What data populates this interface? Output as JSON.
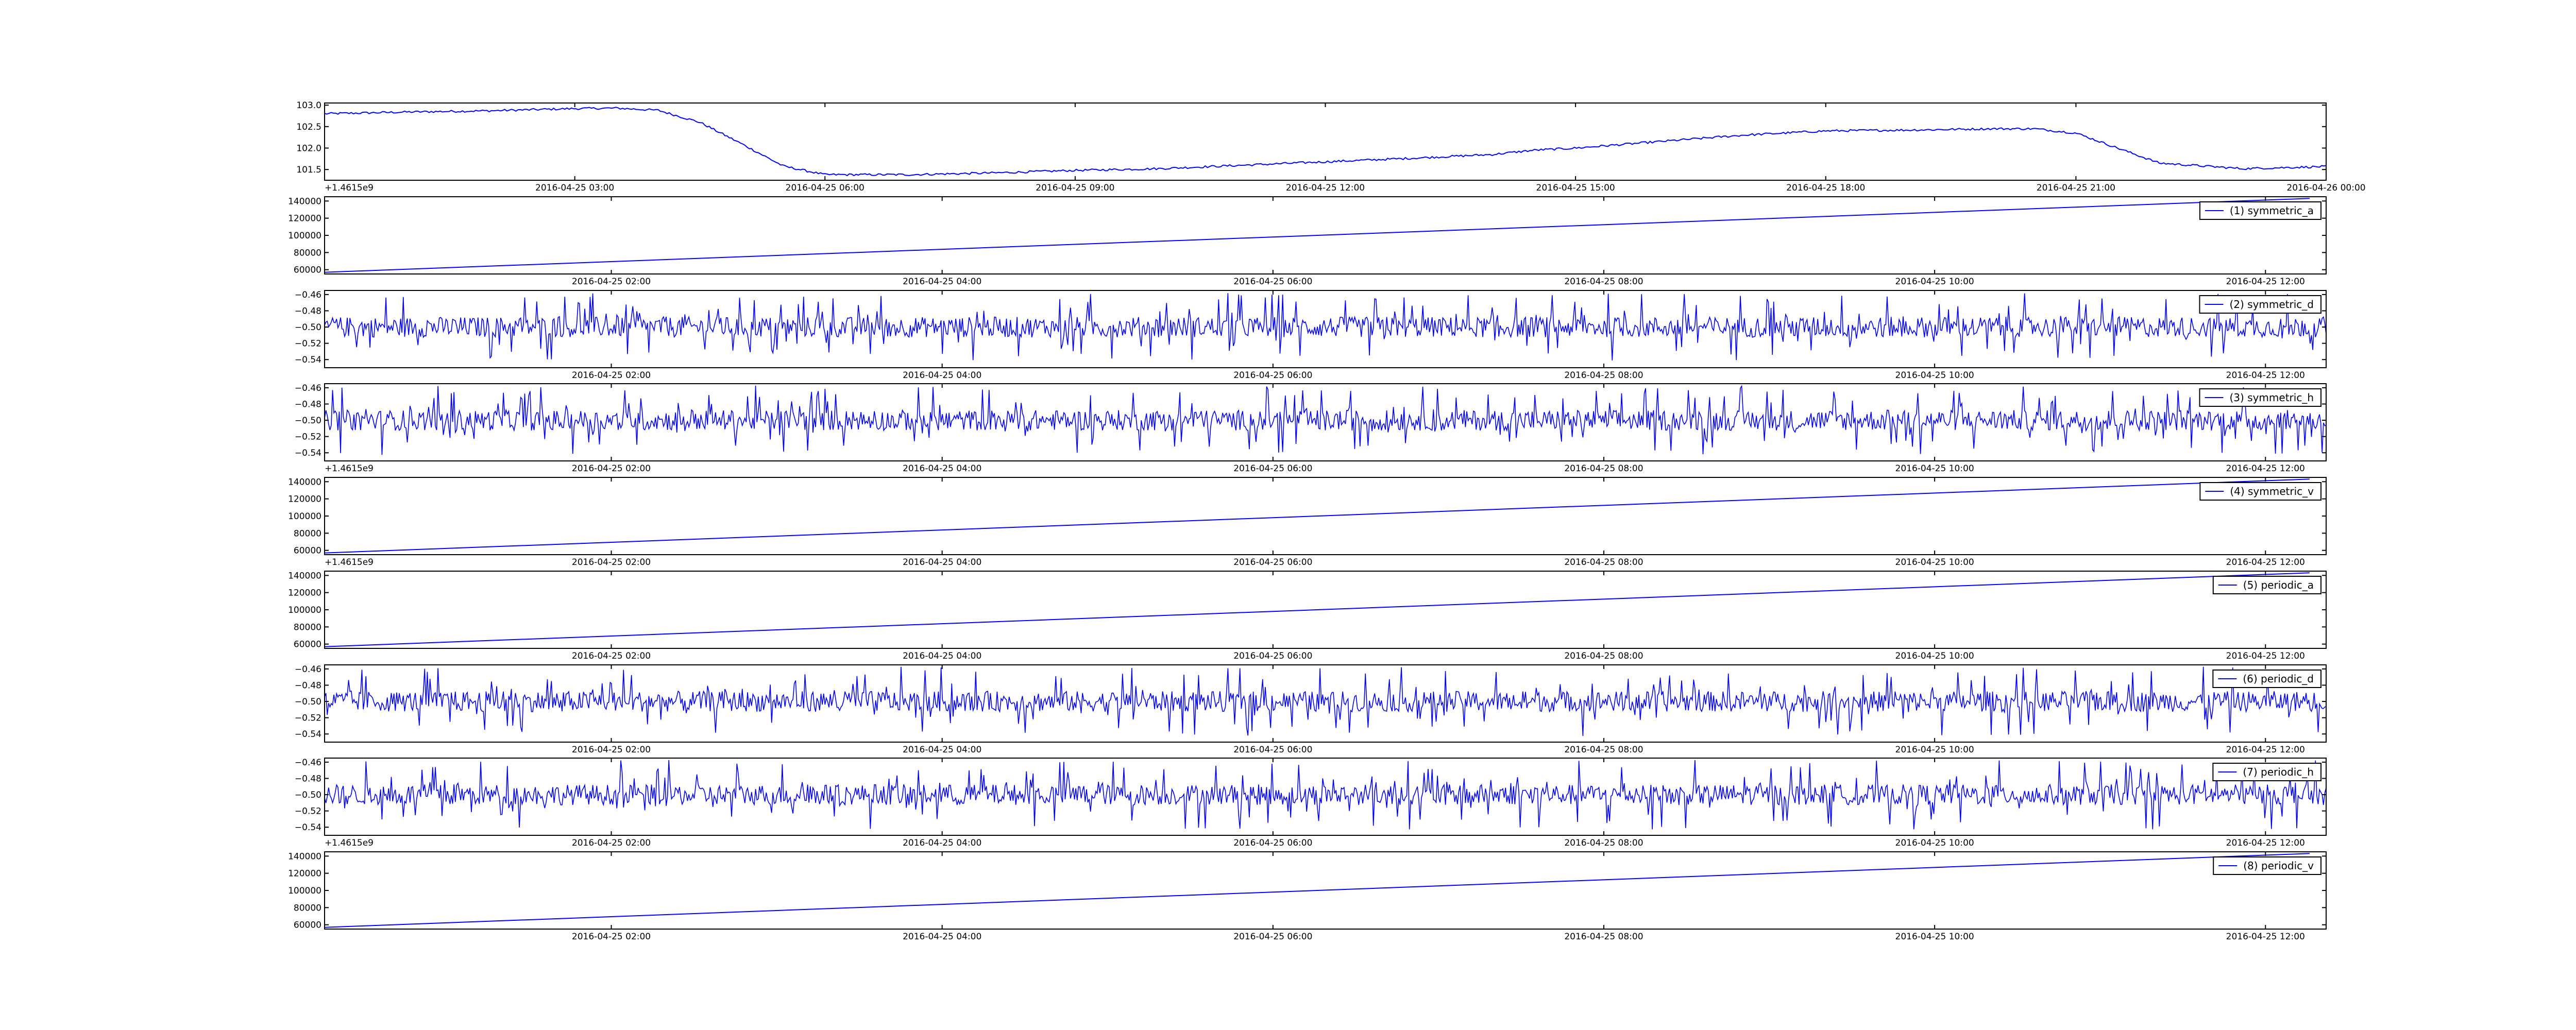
{
  "series_color": "#0000ff",
  "chart_data": [
    {
      "type": "line",
      "title": "",
      "xlabel": "",
      "ylabel": "",
      "x_range": [
        "2016-04-25 00:00",
        "2016-04-26 00:00"
      ],
      "xticks": [
        "2016-04-25 03:00",
        "2016-04-25 06:00",
        "2016-04-25 09:00",
        "2016-04-25 12:00",
        "2016-04-25 15:00",
        "2016-04-25 18:00",
        "2016-04-25 21:00",
        "2016-04-26 00:00"
      ],
      "ylim": [
        101.25,
        103.05
      ],
      "yticks": [
        "101.5",
        "102.0",
        "102.5",
        "103.0"
      ],
      "offset_text": "+1.4615e9",
      "legend": "",
      "grid": false,
      "shape": "plateau",
      "series": [
        {
          "x": [
            "2016-04-25 00:00",
            "2016-04-25 01:00",
            "2016-04-25 02:00",
            "2016-04-25 03:00",
            "2016-04-25 03:30",
            "2016-04-25 04:00",
            "2016-04-25 04:30",
            "2016-04-25 05:00",
            "2016-04-25 05:30",
            "2016-04-25 06:00",
            "2016-04-25 07:00",
            "2016-04-25 08:00",
            "2016-04-25 09:00",
            "2016-04-25 10:00",
            "2016-04-25 11:00",
            "2016-04-25 12:00",
            "2016-04-25 13:00",
            "2016-04-25 14:00",
            "2016-04-25 14:30",
            "2016-04-25 15:00",
            "2016-04-25 16:00",
            "2016-04-25 17:00",
            "2016-04-25 18:00",
            "2016-04-25 19:00",
            "2016-04-25 20:00",
            "2016-04-25 20:30",
            "2016-04-25 21:00",
            "2016-04-25 21:30",
            "2016-04-25 22:00",
            "2016-04-25 23:00",
            "2016-04-26 00:00"
          ],
          "y": [
            102.8,
            102.84,
            102.87,
            102.92,
            102.93,
            102.88,
            102.6,
            102.1,
            101.58,
            101.38,
            101.38,
            101.42,
            101.48,
            101.52,
            101.6,
            101.68,
            101.76,
            101.85,
            101.95,
            102.0,
            102.15,
            102.3,
            102.4,
            102.42,
            102.45,
            102.45,
            102.35,
            102.0,
            101.65,
            101.52,
            101.57
          ]
        }
      ]
    },
    {
      "type": "line",
      "title": "",
      "xlabel": "",
      "ylabel": "",
      "x_range": [
        "2016-04-25 00:16",
        "2016-04-25 12:22"
      ],
      "xticks": [
        "2016-04-25 02:00",
        "2016-04-25 04:00",
        "2016-04-25 06:00",
        "2016-04-25 08:00",
        "2016-04-25 10:00",
        "2016-04-25 12:00"
      ],
      "ylim": [
        55000,
        145000
      ],
      "yticks": [
        "140000",
        "120000",
        "100000",
        "80000",
        "60000"
      ],
      "offset_text": "",
      "legend": "(1) symmetric_a",
      "legend_placement": "upper right",
      "grid": false,
      "shape": "ramp",
      "series": [
        {
          "name": "(1) symmetric_a",
          "x": [
            "2016-04-25 00:16",
            "2016-04-25 12:16"
          ],
          "y": [
            57000,
            143000
          ]
        }
      ]
    },
    {
      "type": "line",
      "title": "",
      "xlabel": "",
      "ylabel": "",
      "x_range": [
        "2016-04-25 00:16",
        "2016-04-25 12:22"
      ],
      "xticks": [
        "2016-04-25 02:00",
        "2016-04-25 04:00",
        "2016-04-25 06:00",
        "2016-04-25 08:00",
        "2016-04-25 10:00",
        "2016-04-25 12:00"
      ],
      "ylim": [
        -0.55,
        -0.455
      ],
      "yticks": [
        "−0.46",
        "−0.48",
        "−0.50",
        "−0.52",
        "−0.54"
      ],
      "offset_text": "",
      "legend": "(2) symmetric_d",
      "legend_placement": "upper right",
      "grid": false,
      "shape": "noise",
      "series": [
        {
          "name": "(2) symmetric_d",
          "x": [
            "2016-04-25 00:16",
            "2016-04-25 12:22"
          ],
          "y": [
            -0.5,
            -0.5
          ],
          "y_range": [
            -0.545,
            -0.455
          ]
        }
      ]
    },
    {
      "type": "line",
      "title": "",
      "xlabel": "",
      "ylabel": "",
      "x_range": [
        "2016-04-25 00:16",
        "2016-04-25 12:22"
      ],
      "xticks": [
        "2016-04-25 02:00",
        "2016-04-25 04:00",
        "2016-04-25 06:00",
        "2016-04-25 08:00",
        "2016-04-25 10:00",
        "2016-04-25 12:00"
      ],
      "ylim": [
        -0.55,
        -0.455
      ],
      "yticks": [
        "−0.46",
        "−0.48",
        "−0.50",
        "−0.52",
        "−0.54"
      ],
      "offset_text": "+1.4615e9",
      "legend": "(3) symmetric_h",
      "legend_placement": "upper right",
      "grid": false,
      "shape": "noise",
      "series": [
        {
          "name": "(3) symmetric_h",
          "x": [
            "2016-04-25 00:16",
            "2016-04-25 12:22"
          ],
          "y": [
            -0.5,
            -0.5
          ],
          "y_range": [
            -0.545,
            -0.455
          ]
        }
      ]
    },
    {
      "type": "line",
      "title": "",
      "xlabel": "",
      "ylabel": "",
      "x_range": [
        "2016-04-25 00:16",
        "2016-04-25 12:22"
      ],
      "xticks": [
        "2016-04-25 02:00",
        "2016-04-25 04:00",
        "2016-04-25 06:00",
        "2016-04-25 08:00",
        "2016-04-25 10:00",
        "2016-04-25 12:00"
      ],
      "ylim": [
        55000,
        145000
      ],
      "yticks": [
        "140000",
        "120000",
        "100000",
        "80000",
        "60000"
      ],
      "offset_text": "+1.4615e9",
      "legend": "(4) symmetric_v",
      "legend_placement": "upper right",
      "grid": false,
      "shape": "ramp",
      "series": [
        {
          "name": "(4) symmetric_v",
          "x": [
            "2016-04-25 00:16",
            "2016-04-25 12:16"
          ],
          "y": [
            57000,
            143000
          ]
        }
      ]
    },
    {
      "type": "line",
      "title": "",
      "xlabel": "",
      "ylabel": "",
      "x_range": [
        "2016-04-25 00:16",
        "2016-04-25 12:22"
      ],
      "xticks": [
        "2016-04-25 02:00",
        "2016-04-25 04:00",
        "2016-04-25 06:00",
        "2016-04-25 08:00",
        "2016-04-25 10:00",
        "2016-04-25 12:00"
      ],
      "ylim": [
        55000,
        145000
      ],
      "yticks": [
        "140000",
        "120000",
        "100000",
        "80000",
        "60000"
      ],
      "offset_text": "",
      "legend": "(5) periodic_a",
      "legend_placement": "upper right",
      "grid": false,
      "shape": "ramp",
      "series": [
        {
          "name": "(5) periodic_a",
          "x": [
            "2016-04-25 00:16",
            "2016-04-25 12:16"
          ],
          "y": [
            57000,
            143000
          ]
        }
      ]
    },
    {
      "type": "line",
      "title": "",
      "xlabel": "",
      "ylabel": "",
      "x_range": [
        "2016-04-25 00:16",
        "2016-04-25 12:22"
      ],
      "xticks": [
        "2016-04-25 02:00",
        "2016-04-25 04:00",
        "2016-04-25 06:00",
        "2016-04-25 08:00",
        "2016-04-25 10:00",
        "2016-04-25 12:00"
      ],
      "ylim": [
        -0.55,
        -0.455
      ],
      "yticks": [
        "−0.46",
        "−0.48",
        "−0.50",
        "−0.52",
        "−0.54"
      ],
      "offset_text": "",
      "legend": "(6) periodic_d",
      "legend_placement": "upper right",
      "grid": false,
      "shape": "noise",
      "series": [
        {
          "name": "(6) periodic_d",
          "x": [
            "2016-04-25 00:16",
            "2016-04-25 12:22"
          ],
          "y": [
            -0.5,
            -0.5
          ],
          "y_range": [
            -0.545,
            -0.455
          ]
        }
      ]
    },
    {
      "type": "line",
      "title": "",
      "xlabel": "",
      "ylabel": "",
      "x_range": [
        "2016-04-25 00:16",
        "2016-04-25 12:22"
      ],
      "xticks": [
        "2016-04-25 02:00",
        "2016-04-25 04:00",
        "2016-04-25 06:00",
        "2016-04-25 08:00",
        "2016-04-25 10:00",
        "2016-04-25 12:00"
      ],
      "ylim": [
        -0.55,
        -0.455
      ],
      "yticks": [
        "−0.46",
        "−0.48",
        "−0.50",
        "−0.52",
        "−0.54"
      ],
      "offset_text": "+1.4615e9",
      "legend": "(7) periodic_h",
      "legend_placement": "upper right",
      "grid": false,
      "shape": "noise",
      "series": [
        {
          "name": "(7) periodic_h",
          "x": [
            "2016-04-25 00:16",
            "2016-04-25 12:22"
          ],
          "y": [
            -0.5,
            -0.5
          ],
          "y_range": [
            -0.545,
            -0.455
          ]
        }
      ]
    },
    {
      "type": "line",
      "title": "",
      "xlabel": "",
      "ylabel": "",
      "x_range": [
        "2016-04-25 00:16",
        "2016-04-25 12:22"
      ],
      "xticks": [
        "2016-04-25 02:00",
        "2016-04-25 04:00",
        "2016-04-25 06:00",
        "2016-04-25 08:00",
        "2016-04-25 10:00",
        "2016-04-25 12:00"
      ],
      "ylim": [
        55000,
        145000
      ],
      "yticks": [
        "140000",
        "120000",
        "100000",
        "80000",
        "60000"
      ],
      "offset_text": "",
      "legend": "(8) periodic_v",
      "legend_placement": "upper right",
      "grid": false,
      "shape": "ramp",
      "series": [
        {
          "name": "(8) periodic_v",
          "x": [
            "2016-04-25 00:16",
            "2016-04-25 12:16"
          ],
          "y": [
            57000,
            143000
          ]
        }
      ]
    }
  ]
}
